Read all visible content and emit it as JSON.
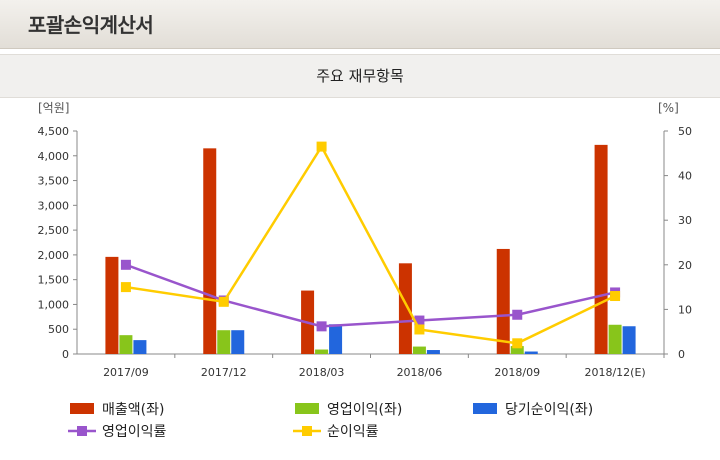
{
  "page": {
    "title": "포괄손익계산서",
    "subtitle": "주요 재무항목"
  },
  "chart_data": {
    "type": "bar",
    "categories": [
      "2017/09",
      "2017/12",
      "2018/03",
      "2018/06",
      "2018/09",
      "2018/12(E)"
    ],
    "left_axis": {
      "unit_label": "[억원]",
      "range": [
        0,
        4500
      ],
      "ticks": [
        "0",
        "500",
        "1,000",
        "1,500",
        "2,000",
        "2,500",
        "3,000",
        "3,500",
        "4,000",
        "4,500"
      ]
    },
    "right_axis": {
      "unit_label": "[%]",
      "range": [
        0,
        50
      ],
      "ticks": [
        "0",
        "10",
        "20",
        "30",
        "40",
        "50"
      ]
    },
    "series": [
      {
        "name": "매출액(좌)",
        "type": "bar",
        "axis": "left",
        "color": "#cc3300",
        "values": [
          1960,
          4150,
          1280,
          1830,
          2120,
          4220
        ]
      },
      {
        "name": "영업이익(좌)",
        "type": "bar",
        "axis": "left",
        "color": "#88c51b",
        "values": [
          380,
          480,
          90,
          150,
          160,
          590
        ]
      },
      {
        "name": "당기순이익(좌)",
        "type": "bar",
        "axis": "left",
        "color": "#2266dd",
        "values": [
          280,
          480,
          600,
          80,
          50,
          560
        ]
      },
      {
        "name": "영업이익률",
        "type": "line",
        "axis": "right",
        "color": "#9955cc",
        "marker": "square",
        "values": [
          20,
          12,
          6.2,
          7.5,
          8.8,
          13.8
        ]
      },
      {
        "name": "순이익률",
        "type": "line",
        "axis": "right",
        "color": "#ffcc00",
        "marker": "square",
        "values": [
          15,
          11.7,
          46.5,
          5.5,
          2.4,
          13
        ]
      }
    ],
    "grid": false,
    "legend_placement": "bottom"
  }
}
